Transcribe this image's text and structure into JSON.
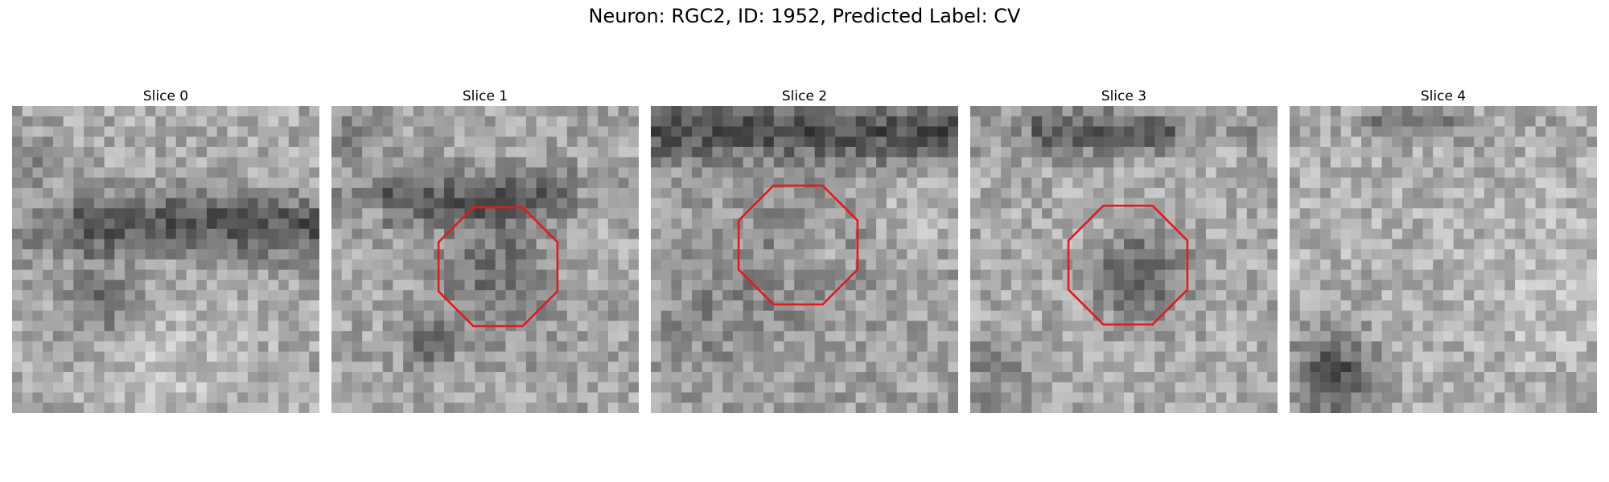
{
  "figure": {
    "title": "Neuron: RGC2, ID: 1952, Predicted Label: CV"
  },
  "panels": [
    {
      "title": "Slice 0",
      "roi_outline": false
    },
    {
      "title": "Slice 1",
      "roi_outline": true
    },
    {
      "title": "Slice 2",
      "roi_outline": true
    },
    {
      "title": "Slice 3",
      "roi_outline": true
    },
    {
      "title": "Slice 4",
      "roi_outline": false
    }
  ],
  "colors": {
    "roi_outline": "#e31a1c",
    "background": "#ffffff"
  }
}
